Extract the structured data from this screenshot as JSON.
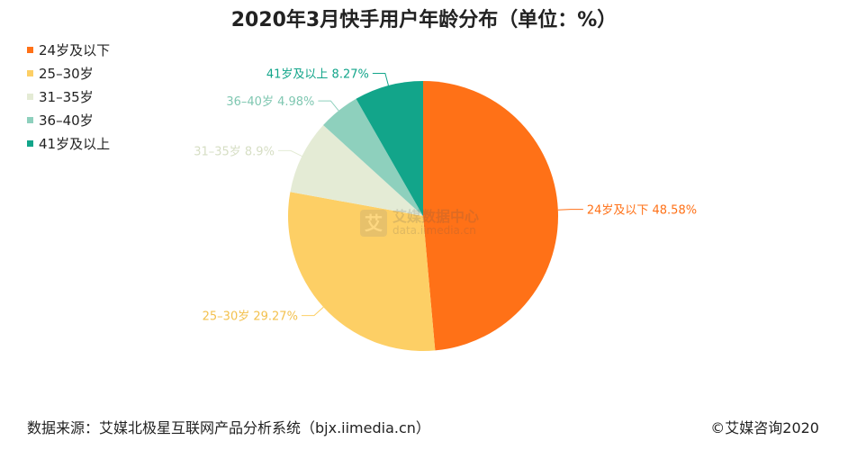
{
  "chart_data": {
    "type": "pie",
    "title": "2020年3月快手用户年龄分布（单位：%）",
    "categories": [
      "24岁及以下",
      "25-30岁",
      "31-35岁",
      "36-40岁",
      "41岁及以上"
    ],
    "values": [
      48.58,
      29.27,
      8.9,
      4.98,
      8.27
    ],
    "value_labels": [
      "48.58%",
      "29.27%",
      "8.9%",
      "4.98%",
      "8.27%"
    ],
    "legend_labels": [
      "24岁及以下",
      "25–30岁",
      "31–35岁",
      "36–40岁",
      "41岁及以上"
    ],
    "slice_labels": [
      "24岁及以下",
      "25–30岁",
      "31–35岁",
      "36–40岁",
      "41岁及以上"
    ],
    "colors": [
      "#FF7117",
      "#FDCF65",
      "#E4EBD5",
      "#8ED0BD",
      "#12A58A"
    ],
    "legend_position": "top-left"
  },
  "watermark": {
    "logo_char": "艾",
    "text_cn": "艾媒数据中心",
    "text_en": "data.iimedia.cn"
  },
  "footer": {
    "source": "数据来源：艾媒北极星互联网产品分析系统（bjx.iimedia.cn）",
    "copyright": "©艾媒咨询2020"
  }
}
